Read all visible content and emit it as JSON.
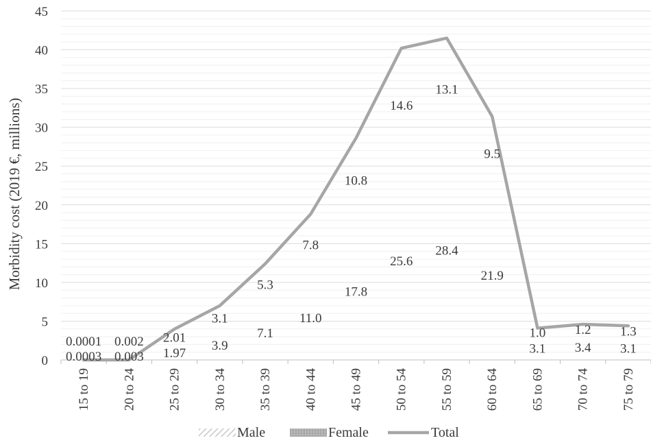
{
  "chart_data": {
    "type": "line",
    "title": "",
    "xlabel": "",
    "ylabel": "Morbidity cost (2019 €, millions)",
    "ylim": [
      0,
      45
    ],
    "yticks": [
      0,
      5,
      10,
      15,
      20,
      25,
      30,
      35,
      40,
      45
    ],
    "grid": true,
    "legend_position": "bottom",
    "categories": [
      "15 to 19",
      "20 to 24",
      "25 to 29",
      "30 to 34",
      "35 to 39",
      "40 to 44",
      "45 to 49",
      "50 to 54",
      "55 to 59",
      "60 to 64",
      "65 to 69",
      "70 to 74",
      "75 to 79"
    ],
    "series": [
      {
        "name": "Male",
        "style": "hatched",
        "values": [
          0.0001,
          0.002,
          2.01,
          3.1,
          5.3,
          7.8,
          10.8,
          14.6,
          13.1,
          9.5,
          1.0,
          1.2,
          1.3
        ],
        "labels": [
          "0.0001",
          "0.002",
          "2.01",
          "3.1",
          "5.3",
          "7.8",
          "10.8",
          "14.6",
          "13.1",
          "9.5",
          "1.0",
          "1.2",
          "1.3"
        ]
      },
      {
        "name": "Female",
        "style": "dotted",
        "values": [
          0.0003,
          0.003,
          1.97,
          3.9,
          7.1,
          11.0,
          17.8,
          25.6,
          28.4,
          21.9,
          3.1,
          3.4,
          3.1
        ],
        "labels": [
          "0.0003",
          "0.003",
          "1.97",
          "3.9",
          "7.1",
          "11.0",
          "17.8",
          "25.6",
          "28.4",
          "21.9",
          "3.1",
          "3.4",
          "3.1"
        ]
      },
      {
        "name": "Total",
        "style": "line",
        "values": [
          0.0004,
          0.005,
          3.98,
          7.0,
          12.4,
          18.8,
          28.6,
          40.2,
          41.5,
          31.4,
          4.1,
          4.6,
          4.4
        ]
      }
    ],
    "colors": {
      "line": "#a6a6a6",
      "grid": "#e3e3e3",
      "text": "#3a3a3a",
      "axis": "#bfbfbf"
    }
  }
}
